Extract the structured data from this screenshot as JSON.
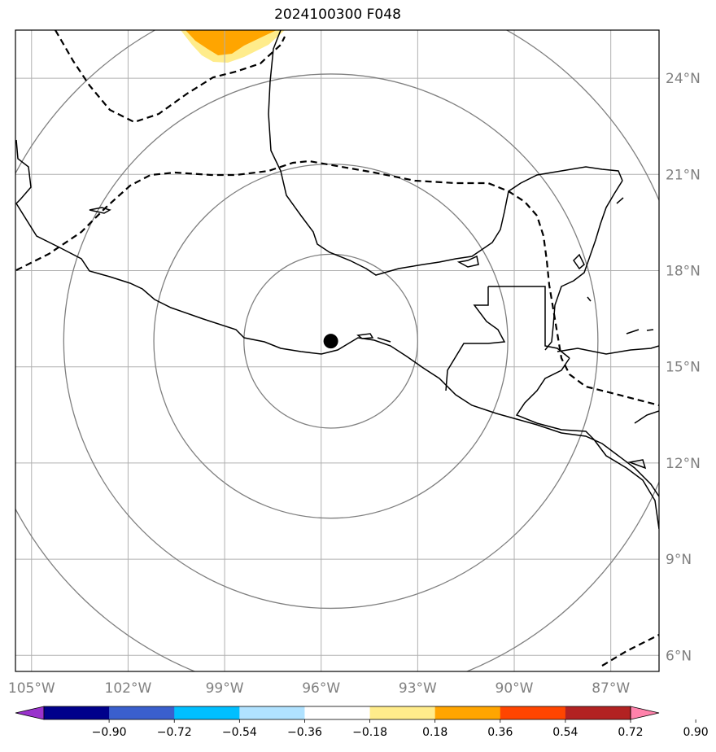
{
  "title": "2024100300 F048",
  "map": {
    "lon_range": [
      -105.5,
      -85.5
    ],
    "lat_range": [
      5.5,
      25.5
    ],
    "lon_ticks": [
      {
        "value": -105,
        "label": "105°W"
      },
      {
        "value": -102,
        "label": "102°W"
      },
      {
        "value": -99,
        "label": "99°W"
      },
      {
        "value": -96,
        "label": "96°W"
      },
      {
        "value": -93,
        "label": "93°W"
      },
      {
        "value": -90,
        "label": "90°W"
      },
      {
        "value": -87,
        "label": "87°W"
      }
    ],
    "lat_ticks": [
      {
        "value": 6,
        "label": "6°N"
      },
      {
        "value": 9,
        "label": "9°N"
      },
      {
        "value": 12,
        "label": "12°N"
      },
      {
        "value": 15,
        "label": "15°N"
      },
      {
        "value": 18,
        "label": "18°N"
      },
      {
        "value": 21,
        "label": "21°N"
      },
      {
        "value": 24,
        "label": "24°N"
      }
    ],
    "center": {
      "lon": -95.7,
      "lat": 15.8
    },
    "range_rings_deg": [
      2.7,
      5.5,
      8.3,
      11.1
    ],
    "grid": true,
    "colors": {
      "coastline": "#000000",
      "grid": "#b0b0b0",
      "rings": "#808080",
      "center_marker": "#000000",
      "contour": "#000000"
    }
  },
  "colorbar": {
    "levels": [
      "−0.90",
      "−0.72",
      "−0.54",
      "−0.36",
      "−0.18",
      "0.18",
      "0.36",
      "0.54",
      "0.72",
      "0.90"
    ],
    "colors": [
      "#9932cc",
      "#00008b",
      "#3a5fcd",
      "#00bfff",
      "#b0e2ff",
      "#ffffff",
      "#ffec8b",
      "#ffa500",
      "#ff4500",
      "#b22222",
      "#ff82ab"
    ]
  }
}
